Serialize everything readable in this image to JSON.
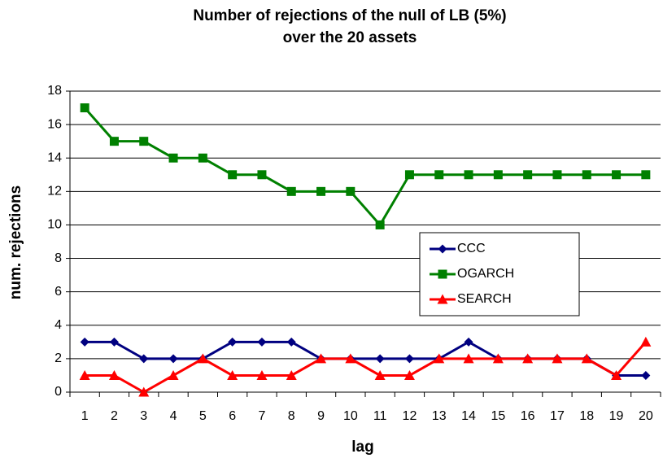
{
  "chart_data": {
    "type": "line",
    "title": [
      "Number of rejections of the null of LB (5%)",
      "over the 20 assets"
    ],
    "x_label": "lag",
    "y_label": "num. rejections",
    "categories": [
      1,
      2,
      3,
      4,
      5,
      6,
      7,
      8,
      9,
      10,
      11,
      12,
      13,
      14,
      15,
      16,
      17,
      18,
      19,
      20
    ],
    "series": [
      {
        "name": "CCC",
        "color": "#000080",
        "marker": "diamond",
        "values": [
          3,
          3,
          2,
          2,
          2,
          3,
          3,
          3,
          2,
          2,
          2,
          2,
          2,
          3,
          2,
          2,
          2,
          2,
          1,
          1
        ]
      },
      {
        "name": "OGARCH",
        "color": "#008000",
        "marker": "square",
        "values": [
          17,
          15,
          15,
          14,
          14,
          13,
          13,
          12,
          12,
          12,
          10,
          13,
          13,
          13,
          13,
          13,
          13,
          13,
          13,
          13
        ]
      },
      {
        "name": "SEARCH",
        "color": "#ff0000",
        "marker": "triangle",
        "values": [
          1,
          1,
          0,
          1,
          2,
          1,
          1,
          1,
          2,
          2,
          1,
          1,
          2,
          2,
          2,
          2,
          2,
          2,
          1,
          3
        ]
      }
    ],
    "ylim": [
      0,
      18
    ],
    "yticks": [
      0,
      2,
      4,
      6,
      8,
      10,
      12,
      14,
      16,
      18
    ],
    "grid": true
  }
}
